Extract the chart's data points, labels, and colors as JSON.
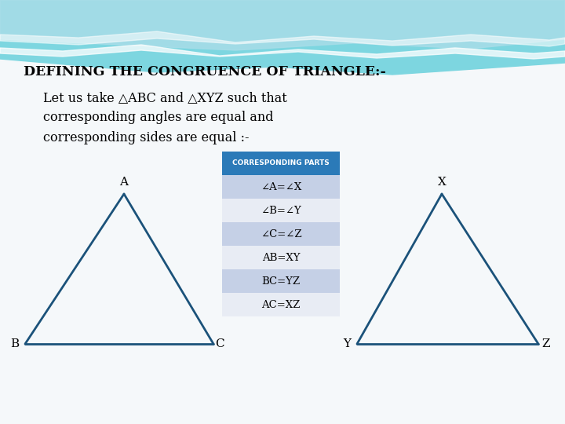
{
  "title": "DEFINING THE CONGRUENCE OF TRIANGLE:-",
  "subtitle_line1": "Let us take △ABC and △XYZ such that",
  "subtitle_line2": "corresponding angles are equal and",
  "subtitle_line3": "corresponding sides are equal :-",
  "table_header": "CORRESPONDING PARTS",
  "table_rows": [
    "∠A=∠X",
    "∠B=∠Y",
    "∠C=∠Z",
    "AB=XY",
    "BC=YZ",
    "AC=XZ"
  ],
  "header_bg": "#2B7AB8",
  "header_fg": "#FFFFFF",
  "row_bg_odd": "#C5D0E6",
  "row_bg_even": "#E8ECF4",
  "triangle_color": "#1B527A",
  "bg_main": "#F5F8FA",
  "wave_color1": "#7DD6E0",
  "wave_color2": "#A8DDE8",
  "wave_white": "#FFFFFF"
}
